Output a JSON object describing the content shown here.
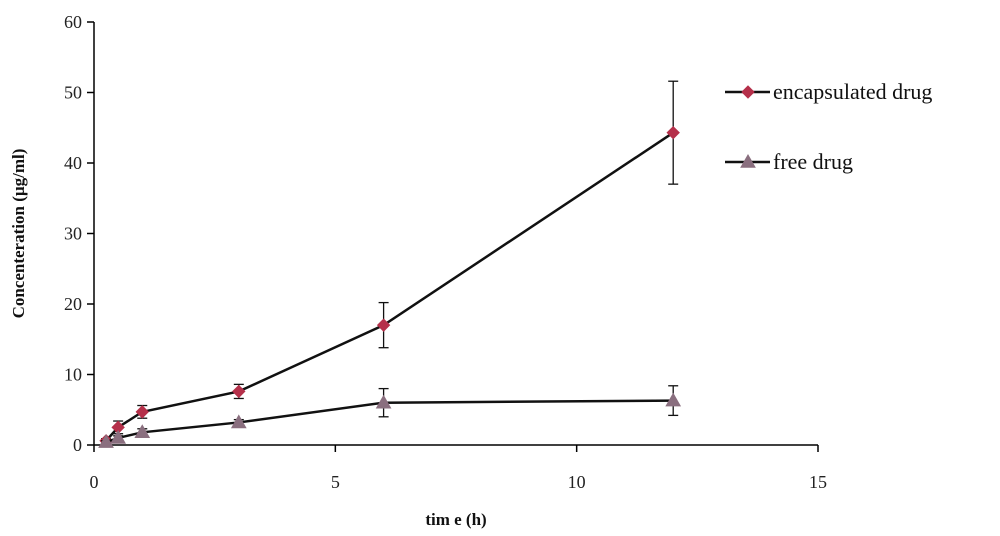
{
  "chart_data": {
    "type": "line",
    "title": "",
    "xlabel": "tim e (h)",
    "ylabel": "Concenteration (µg/ml)",
    "xlim": [
      0,
      15
    ],
    "ylim": [
      0,
      60
    ],
    "xticks": [
      0,
      5,
      10,
      15
    ],
    "yticks": [
      0,
      10,
      20,
      30,
      40,
      50,
      60
    ],
    "grid": false,
    "legend_position": "right",
    "series": [
      {
        "name": "encapsulated drug",
        "color": "#b5304a",
        "marker": "diamond",
        "x": [
          0.25,
          0.5,
          1,
          3,
          6,
          12
        ],
        "y": [
          0.6,
          2.5,
          4.7,
          7.6,
          17.0,
          44.3
        ],
        "err": [
          0.3,
          0.9,
          0.9,
          1.0,
          3.2,
          7.3
        ]
      },
      {
        "name": "free drug",
        "color": "#8a6f7f",
        "marker": "triangle",
        "x": [
          0.25,
          0.5,
          1,
          3,
          6,
          12
        ],
        "y": [
          0.4,
          1.0,
          1.8,
          3.2,
          6.0,
          6.3
        ],
        "err": [
          0.2,
          0.3,
          0.5,
          0.4,
          2.0,
          2.1
        ]
      }
    ]
  }
}
